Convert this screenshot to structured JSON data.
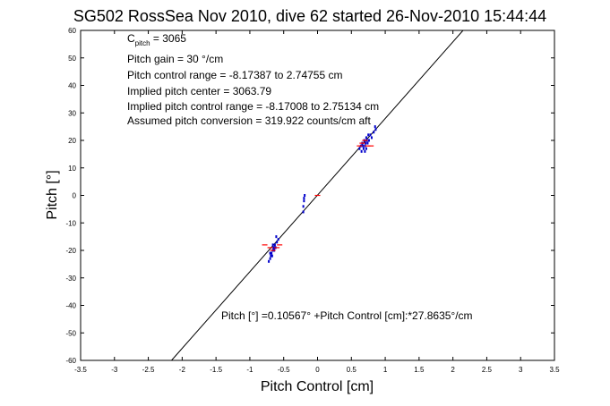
{
  "chart_data": {
    "type": "scatter",
    "title": "SG502 RossSea Nov 2010, dive 62 started 26-Nov-2010 15:44:44",
    "xlabel": "Pitch Control [cm]",
    "ylabel": "Pitch [°]",
    "xlim": [
      -3.5,
      3.5
    ],
    "ylim": [
      -60,
      60
    ],
    "xticks": [
      -3.5,
      -3,
      -2.5,
      -2,
      -1.5,
      -1,
      -0.5,
      0,
      0.5,
      1,
      1.5,
      2,
      2.5,
      3,
      3.5
    ],
    "yticks": [
      -60,
      -50,
      -40,
      -30,
      -20,
      -10,
      0,
      10,
      20,
      30,
      40,
      50,
      60
    ],
    "grid": false,
    "annotations": {
      "c_pitch_main": "C",
      "c_pitch_sub": "pitch",
      "c_pitch_value": " = 3065",
      "pitch_gain": "Pitch gain = 30 °/cm",
      "pitch_control_range": "Pitch control range = -8.17387 to 2.74755 cm",
      "implied_pitch_center": "Implied pitch center = 3063.79",
      "implied_pitch_control_range": "Implied pitch control range = -8.17008 to 2.75134 cm",
      "assumed_pitch_conversion": "Assumed pitch conversion = 319.922 counts/cm aft",
      "fit_equation": "Pitch [°] =0.10567° +Pitch Control [cm]:*27.8635°/cm"
    },
    "fit_line": {
      "slope": 27.8635,
      "intercept": 0.10567,
      "color": "#000000"
    },
    "series": [
      {
        "color": "#0000cc",
        "marker": "dot",
        "x": [
          -0.72,
          -0.7,
          -0.69,
          -0.68,
          -0.66,
          -0.65,
          -0.64,
          -0.63,
          -0.62,
          -0.6,
          -0.58,
          -0.7,
          -0.67,
          -0.66,
          -0.64,
          -0.61,
          -0.21,
          -0.21,
          -0.2,
          -0.2,
          -0.19,
          0.62,
          0.64,
          0.65,
          0.66,
          0.68,
          0.69,
          0.7,
          0.71,
          0.72,
          0.73,
          0.74,
          0.75,
          0.78,
          0.8,
          0.83,
          0.86,
          0.7,
          0.67,
          0.72,
          0.76,
          0.85
        ],
        "y": [
          -24,
          -23,
          -22,
          -21,
          -20,
          -19,
          -20,
          -18,
          -19,
          -17,
          -16,
          -21,
          -22,
          -18,
          -19,
          -15,
          -6,
          -4,
          -2,
          -1,
          0,
          17,
          18,
          16,
          19,
          17,
          20,
          18,
          19,
          21,
          20,
          19,
          22,
          22,
          21,
          23,
          24,
          16,
          18,
          17,
          20,
          25
        ]
      },
      {
        "color": "#ff0000",
        "marker": "dash",
        "x": [
          -0.78,
          -0.7,
          -0.66,
          -0.6,
          -0.56,
          0.0,
          0.62,
          0.66,
          0.7,
          0.74,
          0.79
        ],
        "y": [
          -18,
          -19,
          -20,
          -19,
          -18,
          0,
          18,
          19,
          20,
          18,
          18
        ]
      }
    ]
  }
}
